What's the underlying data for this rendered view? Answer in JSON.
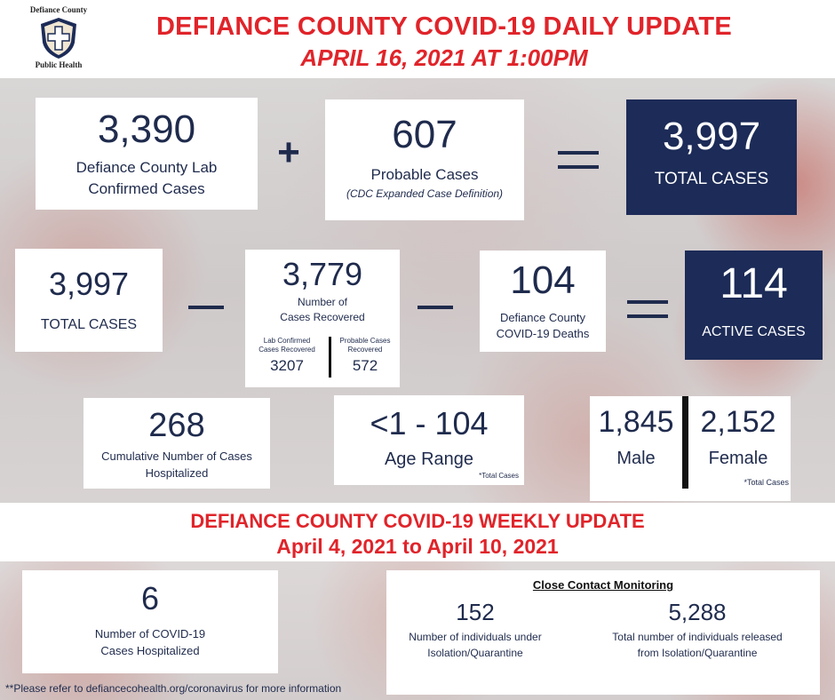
{
  "logo": {
    "org_name": "Defiance County",
    "org_sub": "Public Health"
  },
  "header": {
    "title": "DEFIANCE COUNTY COVID-19 DAILY UPDATE",
    "date": "APRIL 16, 2021 AT 1:00PM"
  },
  "row1": {
    "lab_confirmed": {
      "value": "3,390",
      "label_line1": "Defiance County Lab",
      "label_line2": "Confirmed Cases"
    },
    "plus": "+",
    "probable": {
      "value": "607",
      "label": "Probable Cases",
      "note": "(CDC Expanded Case Definition)"
    },
    "equals": "=",
    "total": {
      "value": "3,997",
      "label": "TOTAL CASES"
    }
  },
  "row2": {
    "total": {
      "value": "3,997",
      "label": "TOTAL CASES"
    },
    "minus1": "—",
    "recovered": {
      "value": "3,779",
      "label_line1": "Number of",
      "label_line2": "Cases Recovered",
      "lab_label_line1": "Lab Confirmed",
      "lab_label_line2": "Cases Recovered",
      "lab_value": "3207",
      "prob_label_line1": "Probable Cases",
      "prob_label_line2": "Recovered",
      "prob_value": "572"
    },
    "minus2": "—",
    "deaths": {
      "value": "104",
      "label_line1": "Defiance County",
      "label_line2": "COVID-19 Deaths"
    },
    "equals": "=",
    "active": {
      "value": "114",
      "label": "ACTIVE CASES"
    }
  },
  "row3": {
    "hospitalized": {
      "value": "268",
      "label_line1": "Cumulative Number of Cases",
      "label_line2": "Hospitalized"
    },
    "age": {
      "value": "<1 - 104",
      "label": "Age Range",
      "note": "*Total Cases"
    },
    "sex": {
      "male_value": "1,845",
      "male_label": "Male",
      "female_value": "2,152",
      "female_label": "Female",
      "note": "*Total Cases"
    }
  },
  "weekly": {
    "title": "DEFIANCE COUNTY COVID-19 WEEKLY UPDATE",
    "range": "April 4, 2021 to April 10, 2021",
    "hospitalized": {
      "value": "6",
      "label_line1": "Number of COVID-19",
      "label_line2": "Cases Hospitalized"
    },
    "contact": {
      "heading": "Close Contact Monitoring",
      "isolation_value": "152",
      "isolation_label_line1": "Number of individuals under",
      "isolation_label_line2": "Isolation/Quarantine",
      "released_value": "5,288",
      "released_label_line1": "Total number of individuals released",
      "released_label_line2": "from Isolation/Quarantine"
    }
  },
  "footnote": "**Please refer to defiancecohealth.org/coronavirus for more information",
  "colors": {
    "red": "#e0242a",
    "navy": "#1c2b57",
    "text": "#1f2b4d"
  }
}
